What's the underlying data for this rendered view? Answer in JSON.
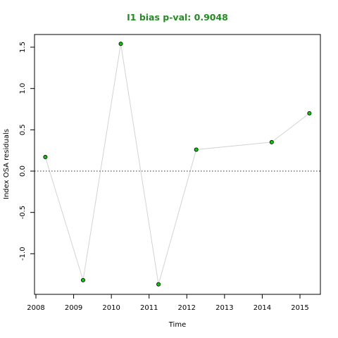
{
  "chart_data": {
    "type": "line",
    "title": "I1 bias p-val: 0.9048",
    "title_color": "#228B22",
    "xlabel": "Time",
    "ylabel": "Index OSA residuals",
    "xlim": [
      2008,
      2015.5
    ],
    "ylim": [
      -1.4,
      1.55
    ],
    "x_ticks": [
      2008,
      2009,
      2010,
      2011,
      2012,
      2013,
      2014,
      2015
    ],
    "y_ticks": [
      -1.0,
      -0.5,
      0.0,
      0.5,
      1.0,
      1.5
    ],
    "y_tick_labels": [
      "-1.0",
      "-0.5",
      "0.0",
      "0.5",
      "1.0",
      "1.5"
    ],
    "reference_line": 0,
    "line_color": "#d3d3d3",
    "point_fill": "#00cc00",
    "grid": false,
    "series": [
      {
        "x": [
          2008.25,
          2009.25,
          2010.25,
          2011.25,
          2012.25,
          2014.25,
          2015.25
        ],
        "y": [
          0.17,
          -1.32,
          1.54,
          -1.37,
          0.26,
          0.35,
          0.7
        ]
      }
    ]
  }
}
